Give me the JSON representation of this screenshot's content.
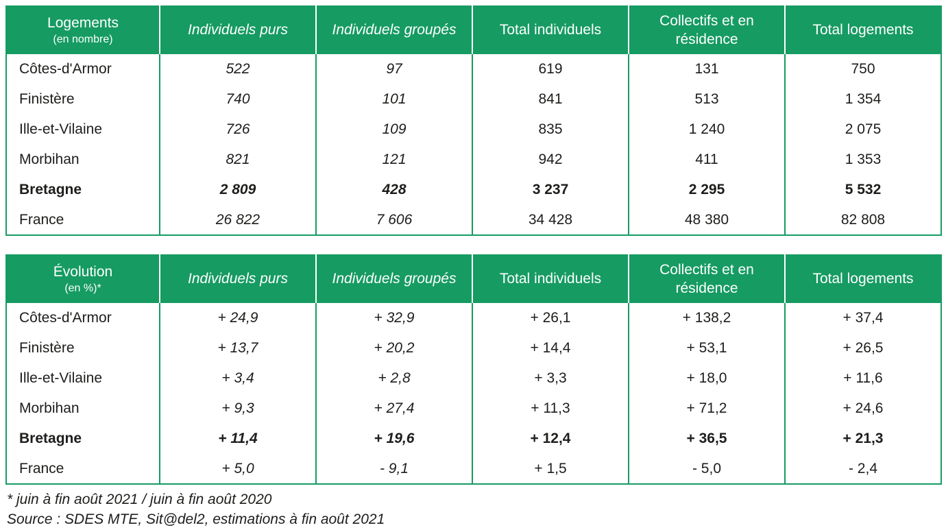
{
  "theme": {
    "accent_green": "#169b62",
    "header_text_color": "#ffffff",
    "body_text_color": "#1d1d1b",
    "background": "#ffffff"
  },
  "tables": [
    {
      "title": "Logements",
      "subtitle": "(en nombre)",
      "columns": [
        "Individuels purs",
        "Individuels groupés",
        "Total individuels",
        "Collectifs et en résidence",
        "Total logements"
      ],
      "rows": [
        {
          "label": "Côtes-d'Armor",
          "values": [
            "522",
            "97",
            "619",
            "131",
            "750"
          ]
        },
        {
          "label": "Finistère",
          "values": [
            "740",
            "101",
            "841",
            "513",
            "1 354"
          ]
        },
        {
          "label": "Ille-et-Vilaine",
          "values": [
            "726",
            "109",
            "835",
            "1 240",
            "2 075"
          ]
        },
        {
          "label": "Morbihan",
          "values": [
            "821",
            "121",
            "942",
            "411",
            "1 353"
          ]
        },
        {
          "label": "Bretagne",
          "values": [
            "2 809",
            "428",
            "3 237",
            "2 295",
            "5 532"
          ]
        },
        {
          "label": "France",
          "values": [
            "26 822",
            "7 606",
            "34 428",
            "48 380",
            "82 808"
          ]
        }
      ]
    },
    {
      "title": "Évolution",
      "subtitle": "(en %)*",
      "columns": [
        "Individuels purs",
        "Individuels groupés",
        "Total individuels",
        "Collectifs et en résidence",
        "Total logements"
      ],
      "rows": [
        {
          "label": "Côtes-d'Armor",
          "values": [
            "+ 24,9",
            "+ 32,9",
            "+ 26,1",
            "+ 138,2",
            "+ 37,4"
          ]
        },
        {
          "label": "Finistère",
          "values": [
            "+ 13,7",
            "+ 20,2",
            "+ 14,4",
            "+ 53,1",
            "+ 26,5"
          ]
        },
        {
          "label": "Ille-et-Vilaine",
          "values": [
            "+ 3,4",
            "+ 2,8",
            "+ 3,3",
            "+ 18,0",
            "+ 11,6"
          ]
        },
        {
          "label": "Morbihan",
          "values": [
            "+ 9,3",
            "+ 27,4",
            "+ 11,3",
            "+ 71,2",
            "+ 24,6"
          ]
        },
        {
          "label": "Bretagne",
          "values": [
            "+ 11,4",
            "+ 19,6",
            "+ 12,4",
            "+ 36,5",
            "+ 21,3"
          ]
        },
        {
          "label": "France",
          "values": [
            "+ 5,0",
            "- 9,1",
            "+ 1,5",
            "- 5,0",
            "- 2,4"
          ]
        }
      ]
    }
  ],
  "footnotes": [
    "* juin à fin août 2021 / juin à fin août 2020",
    "Source : SDES MTE, Sit@del2, estimations à fin août 2021"
  ]
}
